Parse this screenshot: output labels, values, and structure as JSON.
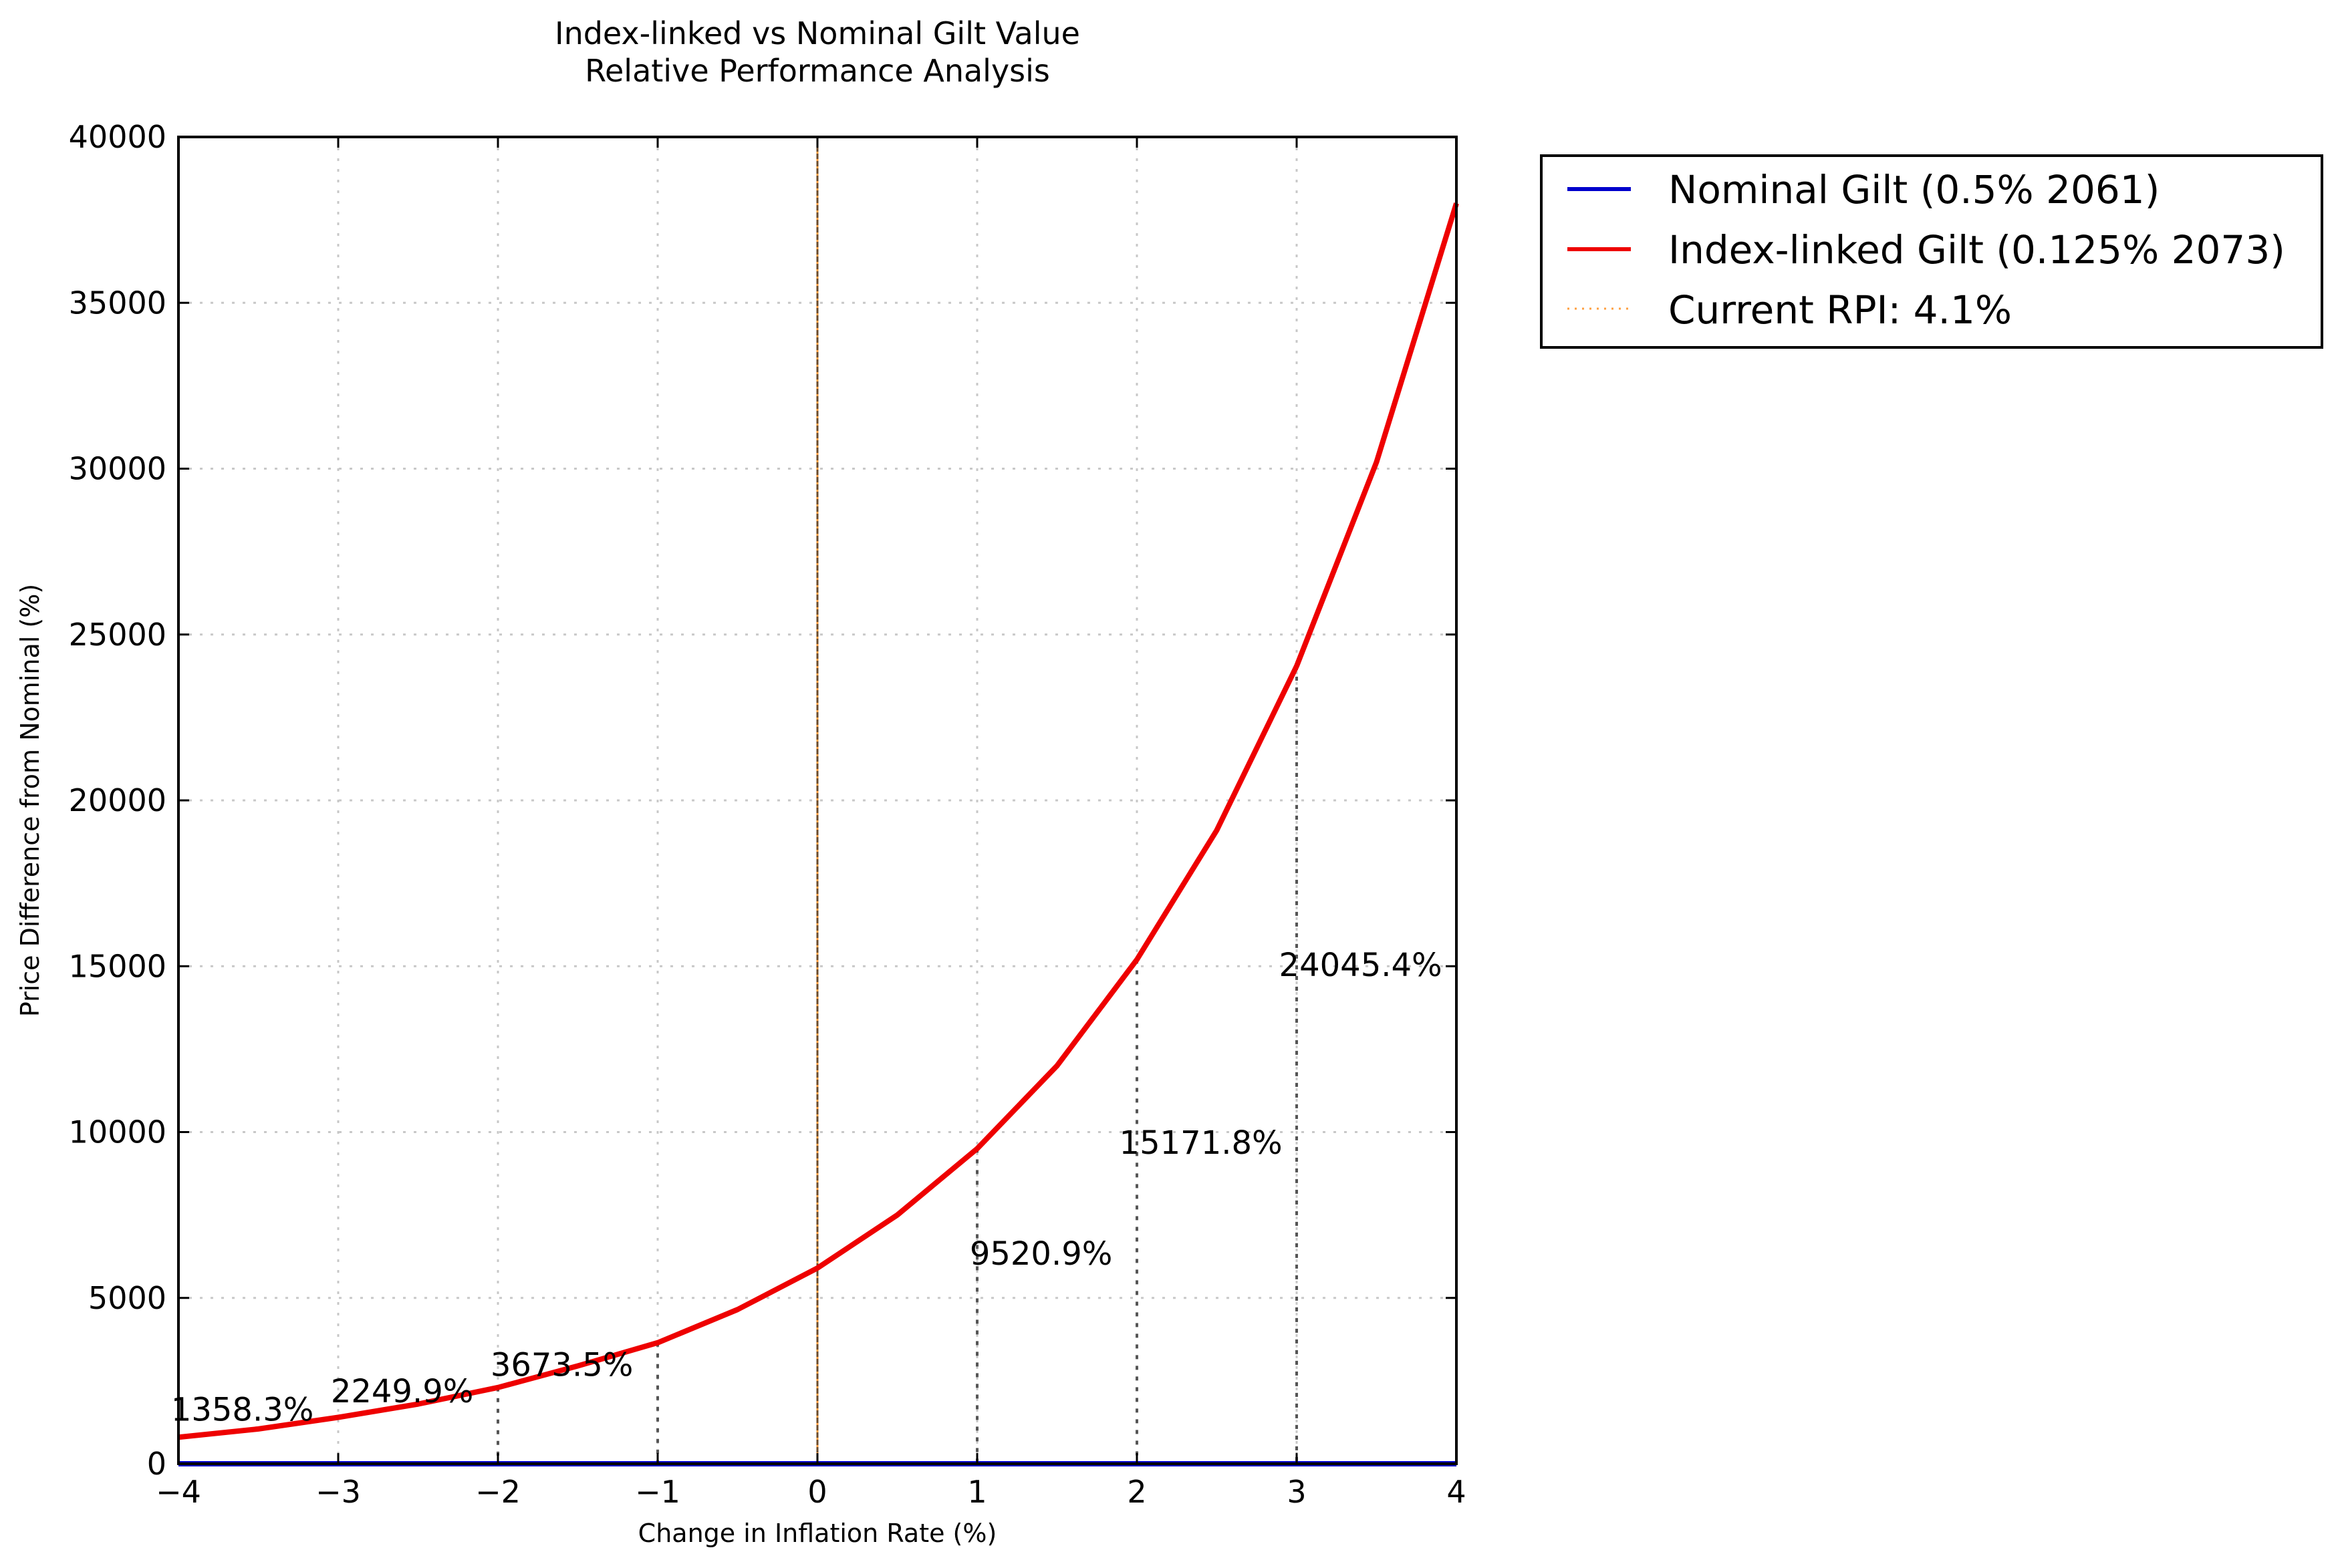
{
  "chart_data": {
    "type": "line",
    "title": "Index-linked vs Nominal Gilt Value",
    "subtitle": "Relative Performance Analysis",
    "xlabel": "Change in Inflation Rate (%)",
    "ylabel": "Price Difference from Nominal (%)",
    "xlim": [
      -4,
      4
    ],
    "ylim": [
      0,
      40000
    ],
    "x_ticks": [
      -4,
      -3,
      -2,
      -1,
      0,
      1,
      2,
      3,
      4
    ],
    "x_tick_labels": [
      "−4",
      "−3",
      "−2",
      "−1",
      "0",
      "1",
      "2",
      "3",
      "4"
    ],
    "y_ticks": [
      0,
      5000,
      10000,
      15000,
      20000,
      25000,
      30000,
      35000,
      40000
    ],
    "y_tick_labels": [
      "0",
      "5000",
      "10000",
      "15000",
      "20000",
      "25000",
      "30000",
      "35000",
      "40000"
    ],
    "grid": true,
    "legend_position": "outside-top-right",
    "series": [
      {
        "name": "Nominal Gilt (0.5% 2061)",
        "color": "#0000cc",
        "style": "solid",
        "x": [
          -4,
          -3.5,
          -3,
          -2.5,
          -2,
          -1.5,
          -1,
          -0.5,
          0,
          0.5,
          1,
          1.5,
          2,
          2.5,
          3,
          3.5,
          4
        ],
        "y": [
          0,
          0,
          0,
          0,
          0,
          0,
          0,
          0,
          0,
          0,
          0,
          0,
          0,
          0,
          0,
          0,
          0
        ]
      },
      {
        "name": "Index-linked Gilt (0.125% 2073)",
        "color": "#ee0000",
        "style": "solid",
        "x": [
          -4,
          -3.5,
          -3,
          -2.5,
          -2,
          -1.5,
          -1,
          -0.5,
          0,
          0.5,
          1,
          1.5,
          2,
          2.5,
          3,
          3.5,
          4
        ],
        "y": [
          800,
          1050,
          1400,
          1800,
          2300,
          2950,
          3650,
          4650,
          5900,
          7500,
          9500,
          12000,
          15200,
          19100,
          24050,
          30200,
          38000
        ]
      }
    ],
    "reference_line": {
      "name": "Current RPI: 4.1%",
      "x": 0,
      "color": "#ffa040",
      "style": "dotted"
    },
    "guides": [
      {
        "x": -2,
        "y": 2300
      },
      {
        "x": -1,
        "y": 3650
      },
      {
        "x": 1,
        "y": 9500
      },
      {
        "x": 2,
        "y": 15200
      },
      {
        "x": 3,
        "y": 24050
      }
    ],
    "annotations": [
      {
        "text": "1358.3%",
        "x": -3.6,
        "y": 1300
      },
      {
        "text": "2249.9%",
        "x": -2.6,
        "y": 1850
      },
      {
        "text": "3673.5%",
        "x": -1.6,
        "y": 2650
      },
      {
        "text": "9520.9%",
        "x": 1.4,
        "y": 6000
      },
      {
        "text": "15171.8%",
        "x": 2.4,
        "y": 9350
      },
      {
        "text": "24045.4%",
        "x": 3.4,
        "y": 14700
      }
    ]
  }
}
